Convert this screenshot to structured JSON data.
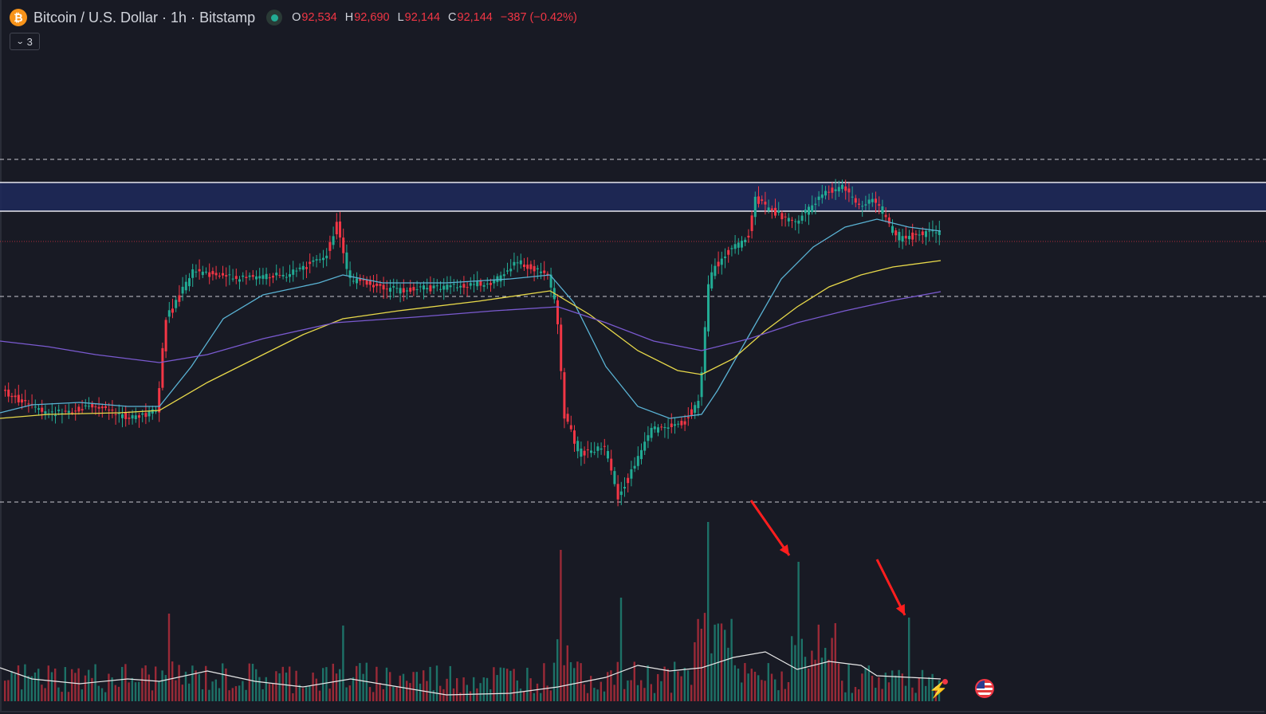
{
  "legend": {
    "coin_glyph": "₿",
    "symbol_title": "Bitcoin / U.S. Dollar · 1h · Bitstamp",
    "status": "market-open",
    "open_key": "O",
    "open_value": "92,534",
    "high_key": "H",
    "high_value": "92,690",
    "low_key": "L",
    "low_value": "92,144",
    "close_key": "C",
    "close_value": "92,144",
    "change": "−387 (−0.42%)"
  },
  "indicators_toggle": {
    "count": "3",
    "icon": "chevron-down-icon"
  },
  "colors": {
    "background": "#181a24",
    "up": "#22ab94",
    "down": "#f23645",
    "ma_fast": "#5ab3d4",
    "ma_mid": "#e8d94a",
    "ma_slow": "#7a5ad0",
    "zone": "#1f2a5c",
    "annotation": "#ff1e1e"
  },
  "chart_data": {
    "type": "candlestick",
    "symbol": "BTCUSD",
    "timeframe": "1h",
    "last_ohlc": {
      "open": 92534,
      "high": 92690,
      "low": 92144,
      "close": 92144
    },
    "horizontal_levels": [
      "dashed-upper",
      "zone-top",
      "zone-bottom",
      "dashed-mid",
      "dashed-lower"
    ],
    "resistance_zone": "highlighted band",
    "moving_averages": [
      "fast",
      "mid",
      "slow"
    ],
    "volume_pane": true,
    "annotations": [
      "arrow-to-volume-spike-1",
      "arrow-to-volume-spike-2"
    ]
  }
}
